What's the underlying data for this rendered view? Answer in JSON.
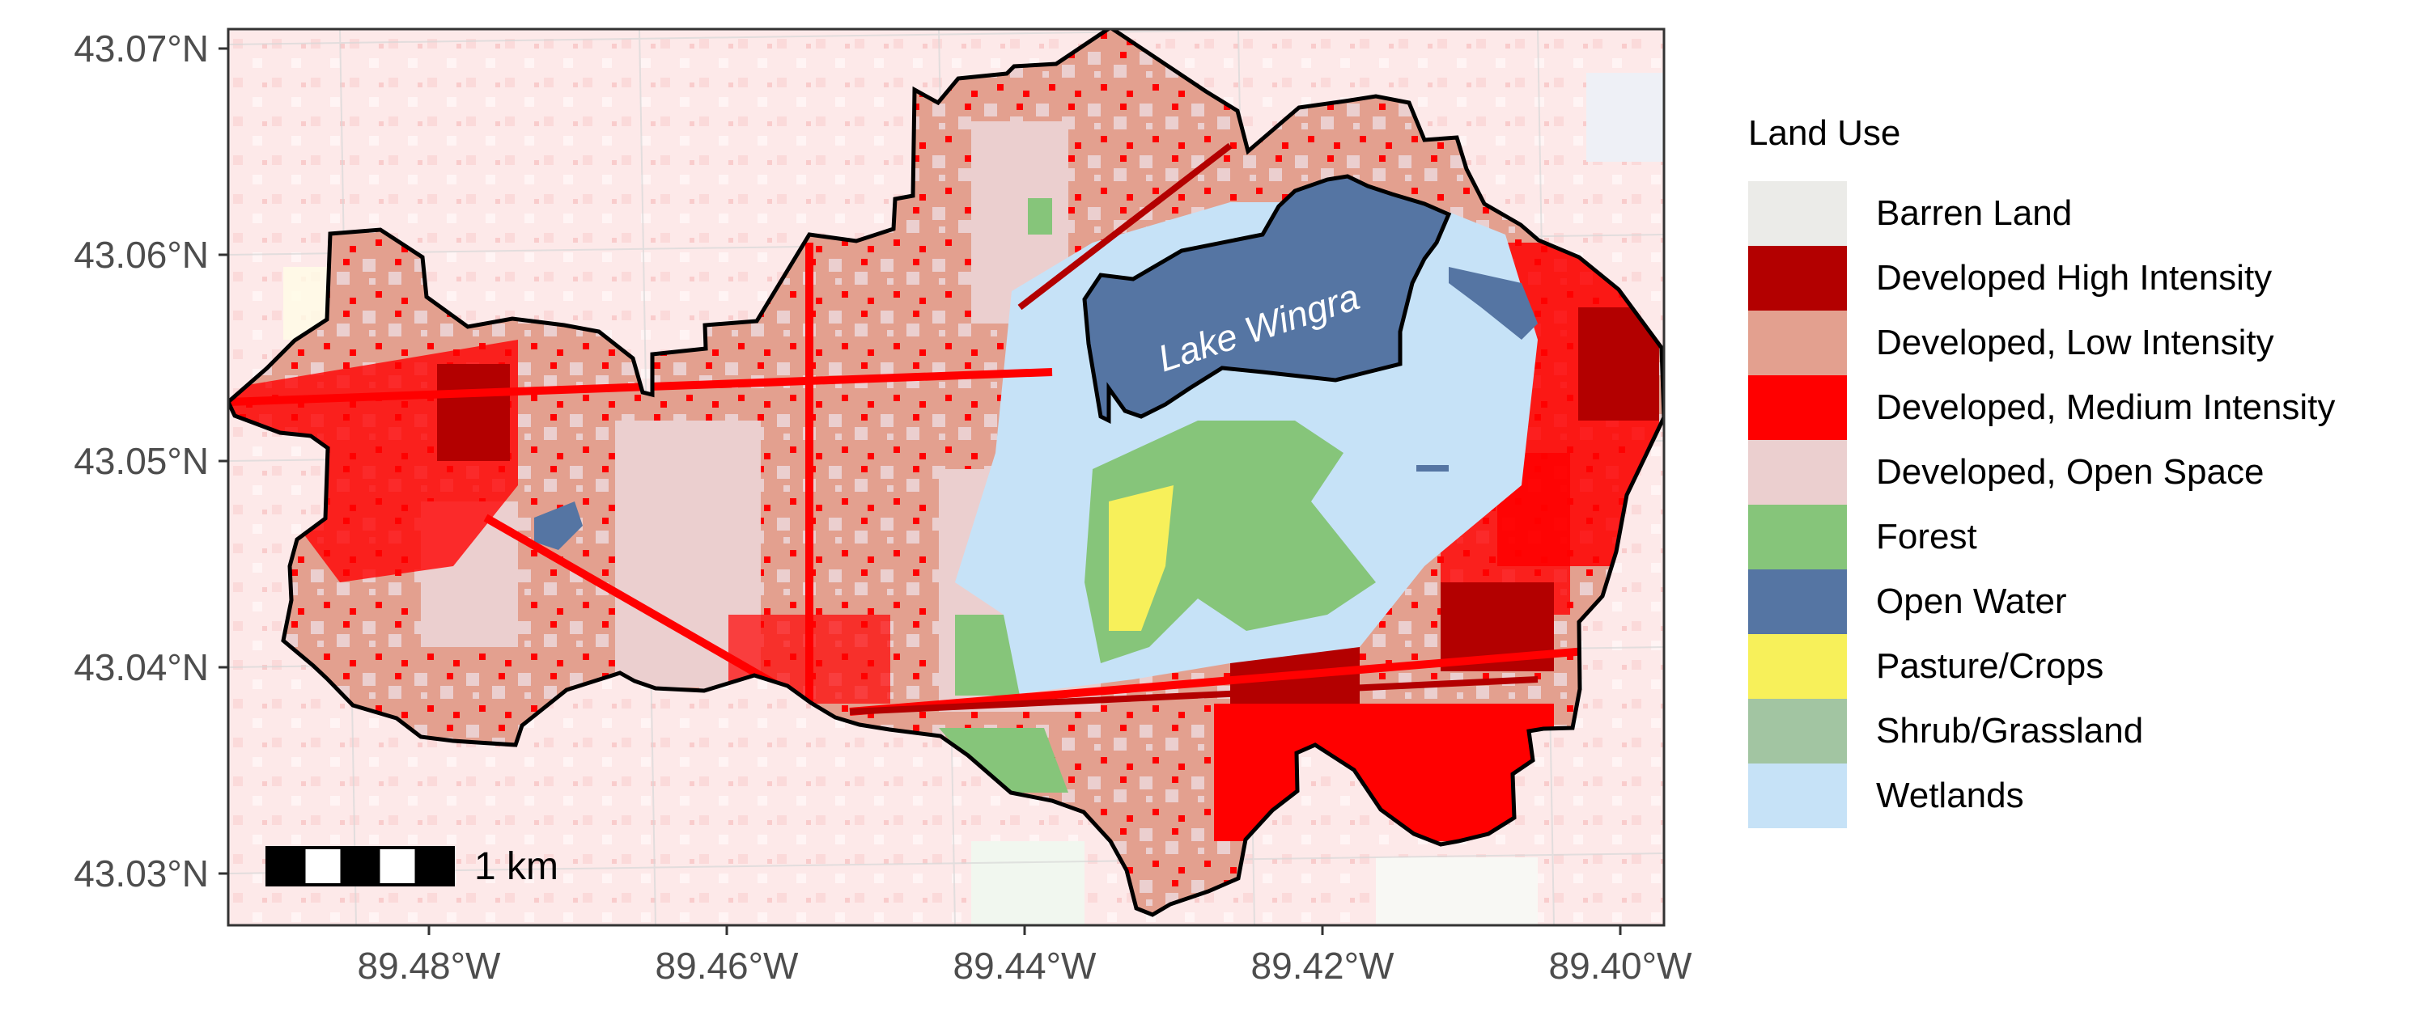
{
  "map": {
    "lake_label": "Lake Wingra",
    "scale_bar_label": "1 km",
    "x_ticks": [
      "89.48°W",
      "89.46°W",
      "89.44°W",
      "89.42°W",
      "89.40°W"
    ],
    "y_ticks": [
      "43.07°N",
      "43.06°N",
      "43.05°N",
      "43.04°N",
      "43.03°N"
    ]
  },
  "legend": {
    "title": "Land Use",
    "items": [
      {
        "label": "Barren Land",
        "color": "#ebebe8"
      },
      {
        "label": "Developed High Intensity",
        "color": "#b30000"
      },
      {
        "label": "Developed, Low Intensity",
        "color": "#e3a08f"
      },
      {
        "label": "Developed, Medium Intensity",
        "color": "#ff0000"
      },
      {
        "label": "Developed, Open Space",
        "color": "#ebcfcf"
      },
      {
        "label": "Forest",
        "color": "#86c57a"
      },
      {
        "label": "Open Water",
        "color": "#5575a3"
      },
      {
        "label": "Pasture/Crops",
        "color": "#f7f05a"
      },
      {
        "label": "Shrub/Grassland",
        "color": "#a2c5a2"
      },
      {
        "label": "Wetlands",
        "color": "#c6e2f7"
      }
    ]
  }
}
